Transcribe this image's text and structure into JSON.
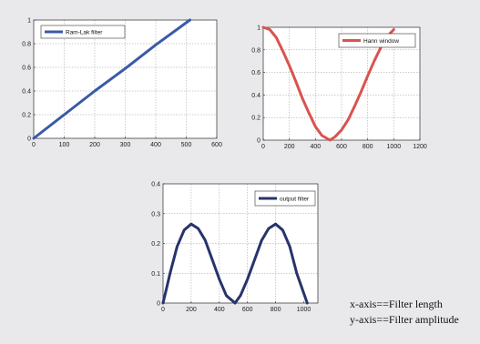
{
  "chart_data": [
    {
      "type": "line",
      "series": [
        {
          "name": "Ram-Lak filter",
          "color": "#3a5aa8",
          "x": [
            0,
            100,
            200,
            300,
            400,
            512
          ],
          "y": [
            0,
            0.2,
            0.4,
            0.59,
            0.79,
            1.0
          ]
        }
      ],
      "xticks": [
        "0",
        "100",
        "200",
        "300",
        "400",
        "500",
        "600"
      ],
      "yticks": [
        "0",
        "0.2",
        "0.4",
        "0.6",
        "0.8",
        "1"
      ],
      "xlim": [
        0,
        600
      ],
      "ylim": [
        0,
        1
      ],
      "grid": true,
      "legend_position": "top-left"
    },
    {
      "type": "line",
      "series": [
        {
          "name": "Hann window",
          "color": "#d9534f",
          "x": [
            0,
            50,
            100,
            150,
            200,
            250,
            300,
            350,
            400,
            450,
            512,
            550,
            600,
            650,
            700,
            750,
            800,
            850,
            900,
            950,
            1000
          ],
          "y": [
            1.0,
            0.98,
            0.91,
            0.79,
            0.66,
            0.52,
            0.37,
            0.24,
            0.12,
            0.04,
            0.0,
            0.03,
            0.09,
            0.18,
            0.3,
            0.43,
            0.57,
            0.7,
            0.82,
            0.92,
            0.98
          ]
        }
      ],
      "xticks": [
        "0",
        "200",
        "400",
        "600",
        "800",
        "1000",
        "1200"
      ],
      "yticks": [
        "0",
        "0.2",
        "0.4",
        "0.6",
        "0.8",
        "1"
      ],
      "xlim": [
        0,
        1200
      ],
      "ylim": [
        0,
        1
      ],
      "grid": true,
      "legend_position": "top-right"
    },
    {
      "type": "line",
      "series": [
        {
          "name": "output filter",
          "color": "#27336b",
          "x": [
            0,
            25,
            50,
            100,
            150,
            200,
            250,
            300,
            350,
            400,
            450,
            512,
            550,
            600,
            650,
            700,
            750,
            800,
            850,
            900,
            950,
            1024
          ],
          "y": [
            0.0,
            0.05,
            0.1,
            0.19,
            0.245,
            0.265,
            0.25,
            0.21,
            0.145,
            0.08,
            0.025,
            0.0,
            0.025,
            0.08,
            0.145,
            0.21,
            0.25,
            0.265,
            0.245,
            0.19,
            0.1,
            0.0
          ]
        }
      ],
      "xticks": [
        "0",
        "200",
        "400",
        "600",
        "800",
        "1000"
      ],
      "yticks": [
        "0",
        "0.1",
        "0.2",
        "0.3",
        "0.4"
      ],
      "xlim": [
        0,
        1100
      ],
      "ylim": [
        0,
        0.4
      ],
      "grid": true,
      "legend_position": "top-right"
    }
  ],
  "captions": {
    "line1": "x-axis==Filter length",
    "line2": "y-axis==Filter amplitude"
  }
}
